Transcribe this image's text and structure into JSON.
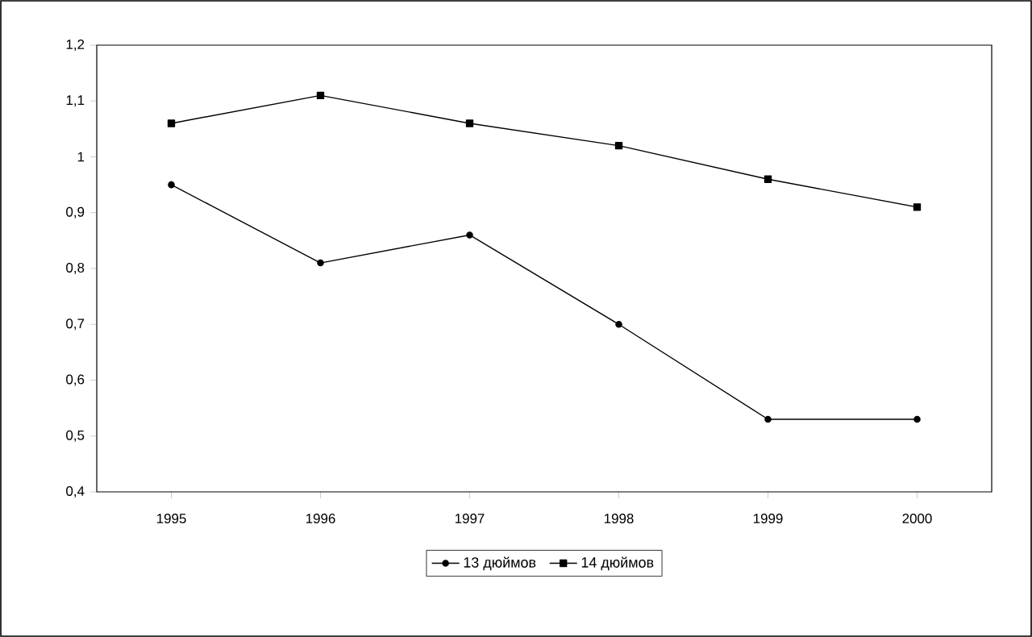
{
  "chart_data": {
    "type": "line",
    "categories": [
      "1995",
      "1996",
      "1997",
      "1998",
      "1999",
      "2000"
    ],
    "series": [
      {
        "name": "13 дюймов",
        "color": "#000000",
        "marker": "circle",
        "values": [
          0.95,
          0.81,
          0.86,
          0.7,
          0.53,
          0.53
        ]
      },
      {
        "name": "14 дюймов",
        "color": "#000000",
        "marker": "square",
        "values": [
          1.06,
          1.11,
          1.06,
          1.02,
          0.96,
          0.91
        ]
      }
    ],
    "ylim": [
      0.4,
      1.2
    ],
    "yticks": [
      {
        "value": 0.4,
        "label": "0,4"
      },
      {
        "value": 0.5,
        "label": "0,5"
      },
      {
        "value": 0.6,
        "label": "0,6"
      },
      {
        "value": 0.7,
        "label": "0,7"
      },
      {
        "value": 0.8,
        "label": "0,8"
      },
      {
        "value": 0.9,
        "label": "0,9"
      },
      {
        "value": 1.0,
        "label": "1"
      },
      {
        "value": 1.1,
        "label": "1,1"
      },
      {
        "value": 1.2,
        "label": "1,2"
      }
    ],
    "grid": false,
    "legend": "bottom",
    "line_style": "solid"
  }
}
